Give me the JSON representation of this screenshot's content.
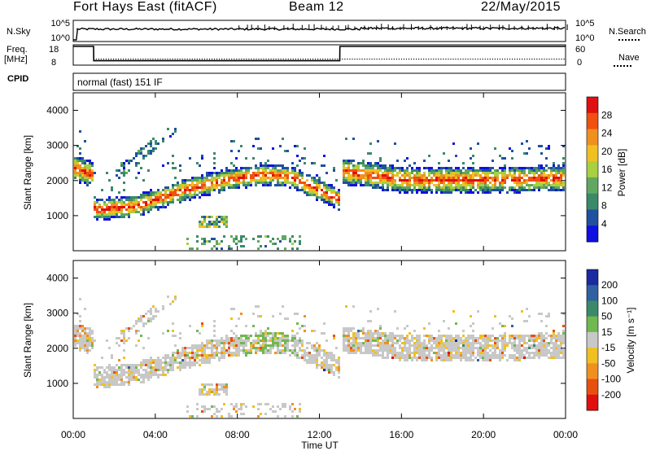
{
  "header": {
    "title": "Fort Hays East (fitACF)",
    "beam": "Beam 12",
    "date": "22/May/2015"
  },
  "strips": {
    "nsky_label": "N.Sky",
    "nsearch_label": "N.Search",
    "nsearch_ticks": [
      "10^5",
      "10^0"
    ],
    "nsky_ticks": [
      "10^5",
      "10^0"
    ],
    "freq_label": "Freq.",
    "freq_unit": "[MHz]",
    "freq_ticks": [
      "18",
      "8"
    ],
    "nave_label": "Nave",
    "nave_ticks": [
      "60",
      "0"
    ],
    "cpid_label": "CPID",
    "cpid_text": "normal (fast) 151 IF"
  },
  "power_panel": {
    "ylabel": "Slant Range [km]",
    "yticks": [
      "1000",
      "2000",
      "3000",
      "4000"
    ],
    "colorbar_label": "Power [dB]",
    "colorbar_ticks": [
      "4",
      "8",
      "12",
      "16",
      "20",
      "24",
      "28"
    ],
    "colors": [
      "#1010e0",
      "#2050a0",
      "#3a8a6a",
      "#60a860",
      "#a8d040",
      "#f0c020",
      "#f09020",
      "#f05010",
      "#e01010"
    ]
  },
  "velocity_panel": {
    "ylabel": "Slant Range [km]",
    "yticks": [
      "1000",
      "2000",
      "3000",
      "4000"
    ],
    "colorbar_label": "Velocity [m s⁻¹]",
    "colorbar_ticks": [
      "200",
      "100",
      "50",
      "15",
      "-15",
      "-50",
      "-100",
      "-200"
    ],
    "colors": [
      "#1a2aa0",
      "#3060a0",
      "#3a8a6a",
      "#70b850",
      "#c8c8c8",
      "#f0c020",
      "#f09020",
      "#e85010",
      "#e01010"
    ]
  },
  "xaxis": {
    "label": "Time UT",
    "ticks": [
      "00:00",
      "04:00",
      "08:00",
      "12:00",
      "16:00",
      "20:00",
      "00:00"
    ]
  },
  "chart_data": [
    {
      "type": "line",
      "title": "N.Sky / N.Search",
      "x": [
        0,
        1,
        2,
        4,
        8,
        12,
        16,
        20,
        24
      ],
      "series": [
        {
          "values": [
            1,
            2,
            2.4,
            2.5,
            2.6,
            2.5,
            2.6,
            2.7,
            2.8
          ]
        }
      ],
      "ylim": [
        "10^0",
        "10^5"
      ]
    },
    {
      "type": "line",
      "title": "Freq. / Nave",
      "x": [
        0,
        0.99,
        1.0,
        12.99,
        13.0,
        24
      ],
      "series": [
        {
          "values": [
            18,
            18,
            10,
            10,
            18,
            18
          ]
        }
      ],
      "ylim": [
        8,
        18
      ]
    },
    {
      "type": "heatmap",
      "title": "Power [dB]",
      "xlim": [
        0,
        24
      ],
      "ylim": [
        0,
        4500
      ],
      "ylabel": "Slant Range [km]",
      "band_center_km": [
        [
          0,
          2400
        ],
        [
          0.9,
          2200
        ],
        [
          1.0,
          1200
        ],
        [
          3,
          1300
        ],
        [
          5,
          1700
        ],
        [
          7,
          2000
        ],
        [
          9,
          2200
        ],
        [
          10.5,
          2150
        ],
        [
          12.9,
          1500
        ],
        [
          13.1,
          2300
        ],
        [
          16,
          2050
        ],
        [
          20,
          2050
        ],
        [
          24,
          2100
        ]
      ],
      "color_range_db": [
        0,
        30
      ]
    },
    {
      "type": "heatmap",
      "title": "Velocity [m s⁻¹]",
      "xlim": [
        0,
        24
      ],
      "ylim": [
        0,
        4500
      ],
      "ylabel": "Slant Range [km]",
      "color_range": [
        -200,
        200
      ]
    }
  ]
}
